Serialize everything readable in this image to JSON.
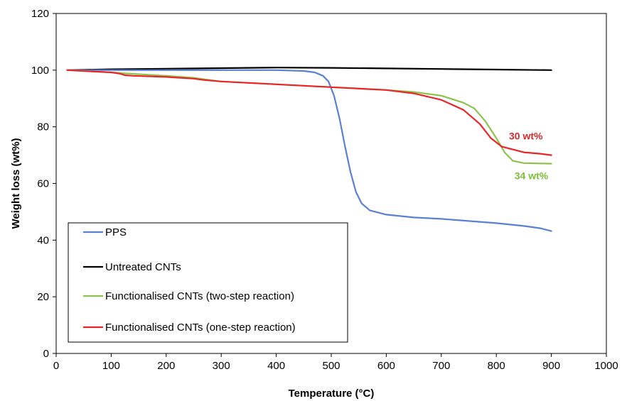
{
  "chart_data": {
    "type": "line",
    "title": "",
    "xlabel": "Temperature (°C)",
    "ylabel": "Weight loss (wt%)",
    "xlim": [
      0,
      1000
    ],
    "ylim": [
      0,
      120
    ],
    "x_ticks": [
      "0",
      "100",
      "200",
      "300",
      "400",
      "500",
      "600",
      "700",
      "800",
      "900",
      "1000"
    ],
    "y_ticks": [
      "0",
      "20",
      "40",
      "60",
      "80",
      "100",
      "120"
    ],
    "grid": false,
    "legend_placement": "bottom-left",
    "series": [
      {
        "name": "PPS",
        "color": "#5b7fd1",
        "points": [
          [
            20,
            100
          ],
          [
            100,
            100
          ],
          [
            200,
            100
          ],
          [
            300,
            100
          ],
          [
            400,
            100
          ],
          [
            450,
            99.7
          ],
          [
            470,
            99.2
          ],
          [
            485,
            98
          ],
          [
            495,
            96
          ],
          [
            505,
            91
          ],
          [
            515,
            83
          ],
          [
            525,
            73
          ],
          [
            535,
            64
          ],
          [
            545,
            57
          ],
          [
            555,
            53
          ],
          [
            570,
            50.5
          ],
          [
            600,
            49
          ],
          [
            650,
            48
          ],
          [
            700,
            47.5
          ],
          [
            800,
            46
          ],
          [
            850,
            45
          ],
          [
            880,
            44.2
          ],
          [
            900,
            43.2
          ]
        ]
      },
      {
        "name": "Untreated CNTs",
        "color": "#000000",
        "points": [
          [
            20,
            100
          ],
          [
            100,
            100.3
          ],
          [
            200,
            100.5
          ],
          [
            300,
            100.7
          ],
          [
            400,
            100.9
          ],
          [
            500,
            100.8
          ],
          [
            600,
            100.6
          ],
          [
            700,
            100.4
          ],
          [
            800,
            100.2
          ],
          [
            900,
            100
          ]
        ]
      },
      {
        "name": "Functionalised CNTs (two-step reaction)",
        "color": "#8bc34a",
        "points": [
          [
            20,
            100
          ],
          [
            60,
            99.6
          ],
          [
            100,
            99.2
          ],
          [
            130,
            98.8
          ],
          [
            200,
            98
          ],
          [
            250,
            97.3
          ],
          [
            280,
            96.5
          ],
          [
            300,
            96
          ],
          [
            400,
            95
          ],
          [
            500,
            94
          ],
          [
            600,
            93
          ],
          [
            650,
            92.3
          ],
          [
            700,
            91
          ],
          [
            740,
            88.5
          ],
          [
            760,
            86.5
          ],
          [
            780,
            82
          ],
          [
            800,
            76
          ],
          [
            815,
            71
          ],
          [
            830,
            68
          ],
          [
            850,
            67.2
          ],
          [
            900,
            67
          ]
        ]
      },
      {
        "name": "Functionalised CNTs (one-step reaction)",
        "color": "#e8262a",
        "points": [
          [
            20,
            100
          ],
          [
            60,
            99.6
          ],
          [
            100,
            99.2
          ],
          [
            115,
            98.8
          ],
          [
            125,
            98.2
          ],
          [
            140,
            98
          ],
          [
            200,
            97.6
          ],
          [
            250,
            97
          ],
          [
            270,
            96.5
          ],
          [
            300,
            96
          ],
          [
            400,
            95
          ],
          [
            500,
            94
          ],
          [
            600,
            93
          ],
          [
            650,
            91.8
          ],
          [
            700,
            89.5
          ],
          [
            740,
            86
          ],
          [
            770,
            81
          ],
          [
            790,
            76
          ],
          [
            810,
            73
          ],
          [
            830,
            72
          ],
          [
            850,
            71
          ],
          [
            880,
            70.5
          ],
          [
            900,
            70
          ]
        ]
      }
    ],
    "annotations": [
      {
        "text": "30 wt%",
        "x": 823,
        "y": 75.5,
        "color": "#d42a2a"
      },
      {
        "text": "34 wt%",
        "x": 833,
        "y": 61.5,
        "color": "#7cbf3a"
      }
    ]
  }
}
